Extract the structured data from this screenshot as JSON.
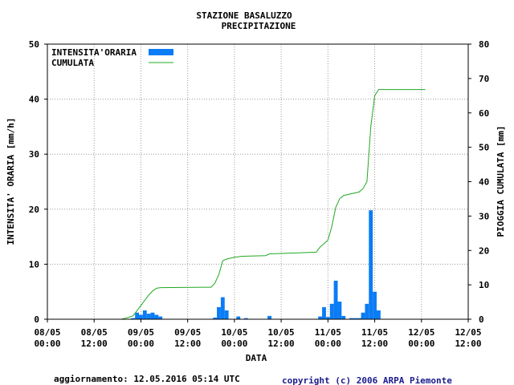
{
  "chart_data": {
    "type": "bar",
    "title": "STAZIONE BASALUZZO",
    "subtitle": "PRECIPITAZIONE",
    "xlabel": "DATA",
    "ylabel_left": "INTENSITA' ORARIA [mm/h]",
    "ylabel_right": "PIOGGIA CUMULATA [mm]",
    "ylim_left": [
      0,
      50
    ],
    "ylim_right": [
      0,
      80
    ],
    "yticks_left": [
      "0",
      "10",
      "20",
      "30",
      "40",
      "50"
    ],
    "yticks_right": [
      "0",
      "10",
      "20",
      "30",
      "40",
      "50",
      "60",
      "70",
      "80"
    ],
    "x_range_hours": [
      0,
      108
    ],
    "x_ticks": [
      {
        "date": "08/05",
        "time": "00:00"
      },
      {
        "date": "08/05",
        "time": "12:00"
      },
      {
        "date": "09/05",
        "time": "00:00"
      },
      {
        "date": "09/05",
        "time": "12:00"
      },
      {
        "date": "10/05",
        "time": "00:00"
      },
      {
        "date": "10/05",
        "time": "12:00"
      },
      {
        "date": "11/05",
        "time": "00:00"
      },
      {
        "date": "11/05",
        "time": "12:00"
      },
      {
        "date": "12/05",
        "time": "00:00"
      },
      {
        "date": "12/05",
        "time": "12:00"
      }
    ],
    "grid": true,
    "legend_position": "top-left",
    "series": [
      {
        "name": "INTENSITA'ORARIA",
        "kind": "bar",
        "axis": "left",
        "color": "#0a7cf5",
        "points": [
          {
            "h": 22,
            "v": 0.2
          },
          {
            "h": 23,
            "v": 1.2
          },
          {
            "h": 24,
            "v": 0.8
          },
          {
            "h": 25,
            "v": 1.6
          },
          {
            "h": 26,
            "v": 1.0
          },
          {
            "h": 27,
            "v": 1.2
          },
          {
            "h": 28,
            "v": 0.8
          },
          {
            "h": 29,
            "v": 0.5
          },
          {
            "h": 43,
            "v": 0.3
          },
          {
            "h": 44,
            "v": 2.2
          },
          {
            "h": 45,
            "v": 4.0
          },
          {
            "h": 46,
            "v": 1.6
          },
          {
            "h": 49,
            "v": 0.5
          },
          {
            "h": 51,
            "v": 0.2
          },
          {
            "h": 57,
            "v": 0.6
          },
          {
            "h": 70,
            "v": 0.5
          },
          {
            "h": 71,
            "v": 2.2
          },
          {
            "h": 72,
            "v": 0.4
          },
          {
            "h": 73,
            "v": 2.8
          },
          {
            "h": 74,
            "v": 7.0
          },
          {
            "h": 75,
            "v": 3.2
          },
          {
            "h": 76,
            "v": 0.6
          },
          {
            "h": 78,
            "v": 0.2
          },
          {
            "h": 79,
            "v": 0.2
          },
          {
            "h": 80,
            "v": 0.2
          },
          {
            "h": 81,
            "v": 1.2
          },
          {
            "h": 82,
            "v": 2.8
          },
          {
            "h": 83,
            "v": 19.8
          },
          {
            "h": 84,
            "v": 5.0
          },
          {
            "h": 85,
            "v": 1.6
          }
        ]
      },
      {
        "name": "CUMULATA",
        "kind": "line",
        "axis": "right",
        "color": "#22a822",
        "points": [
          {
            "h": 19,
            "v": 0
          },
          {
            "h": 20,
            "v": 0.3
          },
          {
            "h": 21,
            "v": 0.6
          },
          {
            "h": 22,
            "v": 1.0
          },
          {
            "h": 23,
            "v": 2.5
          },
          {
            "h": 24,
            "v": 4.0
          },
          {
            "h": 25,
            "v": 5.5
          },
          {
            "h": 26,
            "v": 7.0
          },
          {
            "h": 27,
            "v": 8.2
          },
          {
            "h": 28,
            "v": 9.0
          },
          {
            "h": 29,
            "v": 9.2
          },
          {
            "h": 42,
            "v": 9.3
          },
          {
            "h": 43,
            "v": 10.5
          },
          {
            "h": 44,
            "v": 13.0
          },
          {
            "h": 45,
            "v": 17.0
          },
          {
            "h": 46,
            "v": 17.5
          },
          {
            "h": 48,
            "v": 18.0
          },
          {
            "h": 50,
            "v": 18.3
          },
          {
            "h": 56,
            "v": 18.5
          },
          {
            "h": 57,
            "v": 19.0
          },
          {
            "h": 69,
            "v": 19.5
          },
          {
            "h": 70,
            "v": 21.0
          },
          {
            "h": 71,
            "v": 22.0
          },
          {
            "h": 72,
            "v": 23.0
          },
          {
            "h": 73,
            "v": 27.0
          },
          {
            "h": 74,
            "v": 32.5
          },
          {
            "h": 75,
            "v": 35.0
          },
          {
            "h": 76,
            "v": 36.0
          },
          {
            "h": 80,
            "v": 37.0
          },
          {
            "h": 81,
            "v": 38.0
          },
          {
            "h": 82,
            "v": 40.0
          },
          {
            "h": 83,
            "v": 56.0
          },
          {
            "h": 84,
            "v": 65.0
          },
          {
            "h": 85,
            "v": 66.8
          },
          {
            "h": 97,
            "v": 66.8
          }
        ]
      }
    ]
  },
  "footer": {
    "update_text": "aggiornamento: 12.05.2016 05:14 UTC",
    "copyright": "copyright (c) 2006 ARPA Piemonte"
  }
}
